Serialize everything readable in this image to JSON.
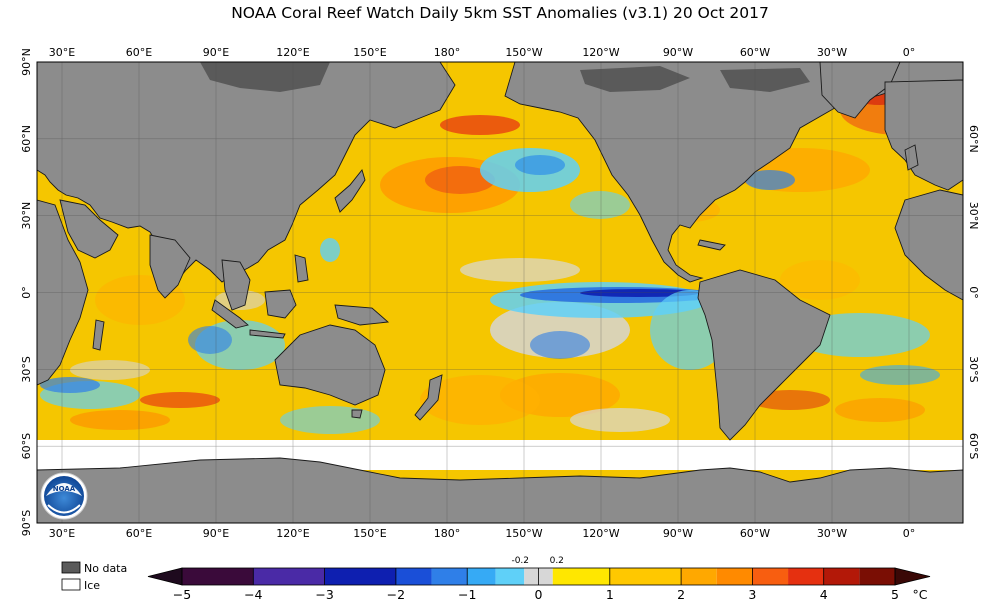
{
  "title": "NOAA Coral Reef Watch Daily 5km SST Anomalies  (v3.1)   20 Oct 2017",
  "lon_labels_top": [
    "30°E",
    "60°E",
    "90°E",
    "120°E",
    "150°E",
    "180°",
    "150°W",
    "120°W",
    "90°W",
    "60°W",
    "30°W",
    "0°"
  ],
  "lon_labels_bottom": [
    "30°E",
    "60°E",
    "90°E",
    "120°E",
    "150°E",
    "180°",
    "150°W",
    "120°W",
    "90°W",
    "60°W",
    "30°W",
    "0°"
  ],
  "lat_labels_left": [
    "90°N",
    "60°N",
    "30°N",
    "0°",
    "30°S",
    "60°S",
    "90°S"
  ],
  "lat_labels_right": [
    "60°N",
    "30°N",
    "0°",
    "30°S",
    "60°S"
  ],
  "legend": {
    "no_data": "No data",
    "ice": "Ice"
  },
  "colorbar": {
    "ticks": [
      "−5",
      "−4",
      "−3",
      "−2",
      "−1",
      "0",
      "1",
      "2",
      "3",
      "4",
      "5"
    ],
    "neutral_low": "-0.2",
    "neutral_high": "0.2",
    "unit": "°C",
    "colors": [
      "#3a0a3a",
      "#5a1a7a",
      "#4a2aa6",
      "#0e1fb0",
      "#1a4fd8",
      "#2f7fe8",
      "#36aaf5",
      "#5fd0f8",
      "#d7d7d7",
      "#ffe700",
      "#ffc800",
      "#ffa800",
      "#ff8a00",
      "#f85e10",
      "#e53010",
      "#b31808",
      "#7a0e04"
    ],
    "low_end_color": "#1e0a1e",
    "high_end_color": "#3a0806"
  },
  "colors": {
    "land": "#8c8c8c",
    "no_data": "#5a5a5a",
    "ice": "#ffffff",
    "ocean_base": "#f5c600"
  },
  "logo_text": "NOAA"
}
